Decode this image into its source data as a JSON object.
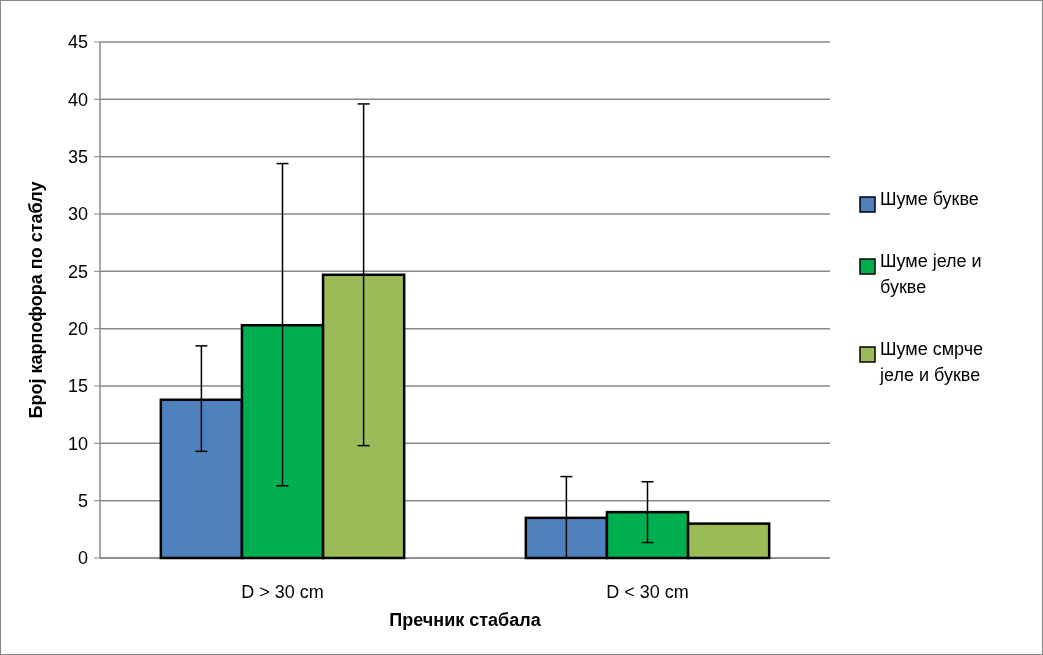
{
  "chart_data": {
    "type": "bar",
    "xlabel": "Пречник стабала",
    "ylabel": "Број карпофора по стаблу",
    "categories": [
      "D > 30 cm",
      "D < 30 cm"
    ],
    "series": [
      {
        "name": "Шуме букве",
        "color": "#4f81bd",
        "values": [
          13.8,
          3.5
        ],
        "errors": [
          [
            9.3,
            18.5
          ],
          [
            0,
            7.1
          ]
        ]
      },
      {
        "name": "Шуме јеле и букве",
        "color": "#00b050",
        "values": [
          20.3,
          4.0
        ],
        "errors": [
          [
            6.3,
            34.4
          ],
          [
            1.35,
            6.65
          ]
        ]
      },
      {
        "name": "Шуме смрче јеле и букве",
        "color": "#9bbb59",
        "values": [
          24.7,
          3.0
        ],
        "errors": [
          [
            9.8,
            39.6
          ],
          null
        ]
      }
    ],
    "ylim": [
      0,
      45
    ],
    "yticks": [
      0,
      5,
      10,
      15,
      20,
      25,
      30,
      35,
      40,
      45
    ],
    "grid": "y",
    "legend": "right"
  }
}
